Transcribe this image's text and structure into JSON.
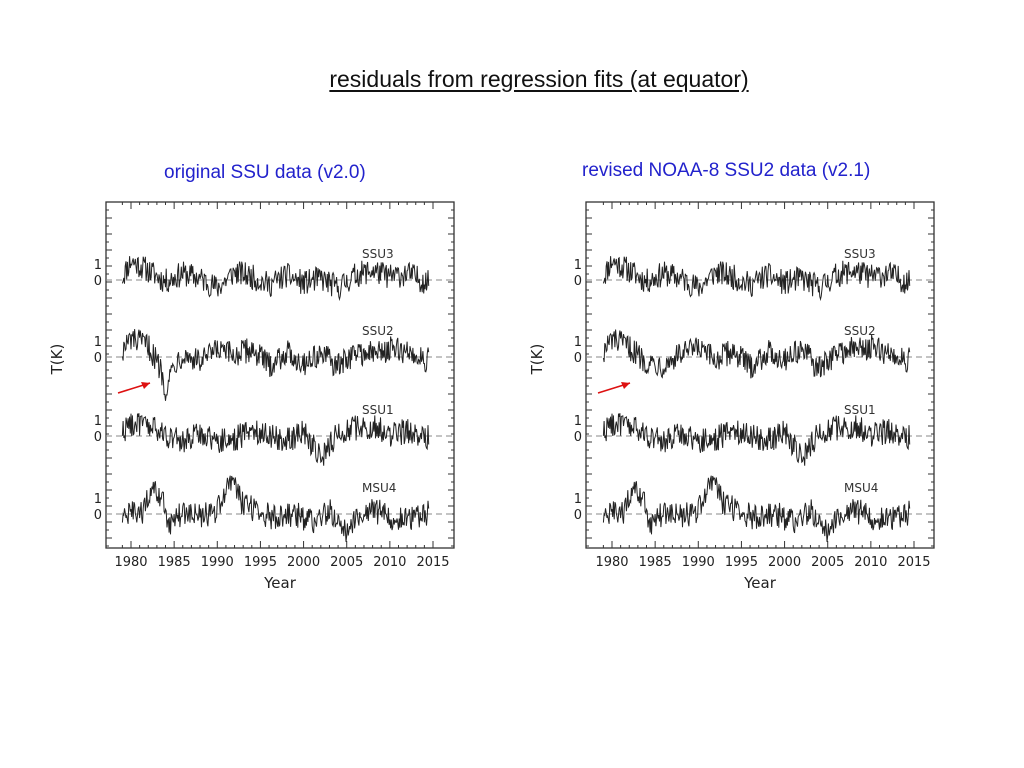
{
  "title": "residuals from regression fits (at equator)",
  "colors": {
    "panel_title": "#2222cc",
    "arrow": "#dd1111",
    "line": "#222222",
    "zero_line": "#888888"
  },
  "chart_data": [
    {
      "type": "line",
      "panel_title": "original SSU data  (v2.0)",
      "xlabel": "Year",
      "ylabel": "T(K)",
      "xlim": [
        1978,
        2015
      ],
      "x_ticks": [
        "1980",
        "1985",
        "1990",
        "1995",
        "2000",
        "2005",
        "2010",
        "2015"
      ],
      "y_tick_labels": [
        "1",
        "0"
      ],
      "annotation": "red arrow pointing at the 1984-1985 drop in SSU2",
      "series": [
        {
          "name": "SSU3",
          "x": [
            1979,
            1980,
            1982,
            1984,
            1986,
            1988,
            1990,
            1992,
            1994,
            1996,
            1998,
            2000,
            2002,
            2004,
            2006,
            2008,
            2010,
            2012,
            2014.5
          ],
          "values": [
            0.2,
            1.2,
            0.6,
            -0.1,
            0.4,
            0.1,
            -0.5,
            0.5,
            0.2,
            -0.3,
            0.3,
            -0.2,
            0.1,
            -0.5,
            0.3,
            0.6,
            0.2,
            0.4,
            -0.2
          ]
        },
        {
          "name": "SSU2",
          "x": [
            1979,
            1980,
            1982,
            1983.5,
            1984,
            1985,
            1986,
            1988,
            1990,
            1992,
            1994,
            1996,
            1998,
            2000,
            2002,
            2004,
            2006,
            2008,
            2010,
            2012,
            2014.5
          ],
          "values": [
            0.4,
            1.1,
            0.7,
            -0.8,
            -2.0,
            -0.4,
            0.2,
            -0.3,
            0.4,
            0.1,
            0.5,
            -0.5,
            0.3,
            -0.4,
            0.2,
            -0.6,
            0.3,
            0.2,
            0.5,
            0.3,
            -0.2
          ]
        },
        {
          "name": "SSU1",
          "x": [
            1979,
            1980,
            1982,
            1984,
            1986,
            1988,
            1990,
            1992,
            1994,
            1996,
            1998,
            2000,
            2002,
            2004,
            2006,
            2008,
            2010,
            2012,
            2014.5
          ],
          "values": [
            0.3,
            0.8,
            0.6,
            0.1,
            -0.4,
            0.2,
            -0.3,
            -0.2,
            0.4,
            0.1,
            -0.3,
            0.3,
            -1.4,
            0.2,
            0.5,
            0.6,
            0.1,
            0.3,
            -0.1
          ]
        },
        {
          "name": "MSU4",
          "x": [
            1979,
            1980,
            1981,
            1982.5,
            1983.5,
            1984.5,
            1986,
            1988,
            1990,
            1991.5,
            1993,
            1995,
            1997,
            1999,
            2001,
            2003,
            2005,
            2007,
            2009,
            2011,
            2013,
            2014.5
          ],
          "values": [
            -0.3,
            0.1,
            -0.2,
            1.4,
            1.0,
            -0.6,
            0.1,
            -0.2,
            0.2,
            2.2,
            0.6,
            0.1,
            -0.3,
            0.0,
            -0.5,
            0.2,
            -1.0,
            0.3,
            0.1,
            -0.4,
            -0.2,
            0.1
          ]
        }
      ]
    },
    {
      "type": "line",
      "panel_title": "revised NOAA-8 SSU2 data  (v2.1)",
      "xlabel": "Year",
      "ylabel": "T(K)",
      "xlim": [
        1978,
        2015
      ],
      "x_ticks": [
        "1980",
        "1985",
        "1990",
        "1995",
        "2000",
        "2005",
        "2010",
        "2015"
      ],
      "y_tick_labels": [
        "1",
        "0"
      ],
      "annotation": "red arrow pointing at the 1984-1985 SSU2 segment, now without the drop",
      "series": [
        {
          "name": "SSU3",
          "x": [
            1979,
            1980,
            1982,
            1984,
            1986,
            1988,
            1990,
            1992,
            1994,
            1996,
            1998,
            2000,
            2002,
            2004,
            2006,
            2008,
            2010,
            2012,
            2014.5
          ],
          "values": [
            0.2,
            1.2,
            0.6,
            -0.1,
            0.4,
            0.1,
            -0.5,
            0.5,
            0.2,
            -0.3,
            0.3,
            -0.2,
            0.1,
            -0.5,
            0.3,
            0.6,
            0.2,
            0.4,
            -0.2
          ]
        },
        {
          "name": "SSU2",
          "x": [
            1979,
            1980,
            1982,
            1984,
            1986,
            1988,
            1990,
            1992,
            1994,
            1996,
            1998,
            2000,
            2002,
            2004,
            2006,
            2008,
            2010,
            2012,
            2014.5
          ],
          "values": [
            0.3,
            1.1,
            0.6,
            -0.3,
            -0.5,
            0.2,
            0.5,
            -0.2,
            0.4,
            -0.6,
            0.3,
            -0.1,
            0.5,
            -0.8,
            0.3,
            0.5,
            0.6,
            0.2,
            -0.2
          ]
        },
        {
          "name": "SSU1",
          "x": [
            1979,
            1980,
            1982,
            1984,
            1986,
            1988,
            1990,
            1992,
            1994,
            1996,
            1998,
            2000,
            2002,
            2004,
            2006,
            2008,
            2010,
            2012,
            2014.5
          ],
          "values": [
            0.3,
            0.8,
            0.6,
            0.1,
            -0.4,
            0.2,
            -0.3,
            -0.2,
            0.4,
            0.1,
            -0.3,
            0.3,
            -1.4,
            0.2,
            0.5,
            0.6,
            0.1,
            0.3,
            -0.1
          ]
        },
        {
          "name": "MSU4",
          "x": [
            1979,
            1980,
            1981,
            1982.5,
            1983.5,
            1984.5,
            1986,
            1988,
            1990,
            1991.5,
            1993,
            1995,
            1997,
            1999,
            2001,
            2003,
            2005,
            2007,
            2009,
            2011,
            2013,
            2014.5
          ],
          "values": [
            -0.3,
            0.1,
            -0.2,
            1.4,
            1.0,
            -0.6,
            0.1,
            -0.2,
            0.2,
            2.2,
            0.6,
            0.1,
            -0.3,
            0.0,
            -0.5,
            0.2,
            -1.0,
            0.3,
            0.1,
            -0.4,
            -0.2,
            0.1
          ]
        }
      ]
    }
  ]
}
